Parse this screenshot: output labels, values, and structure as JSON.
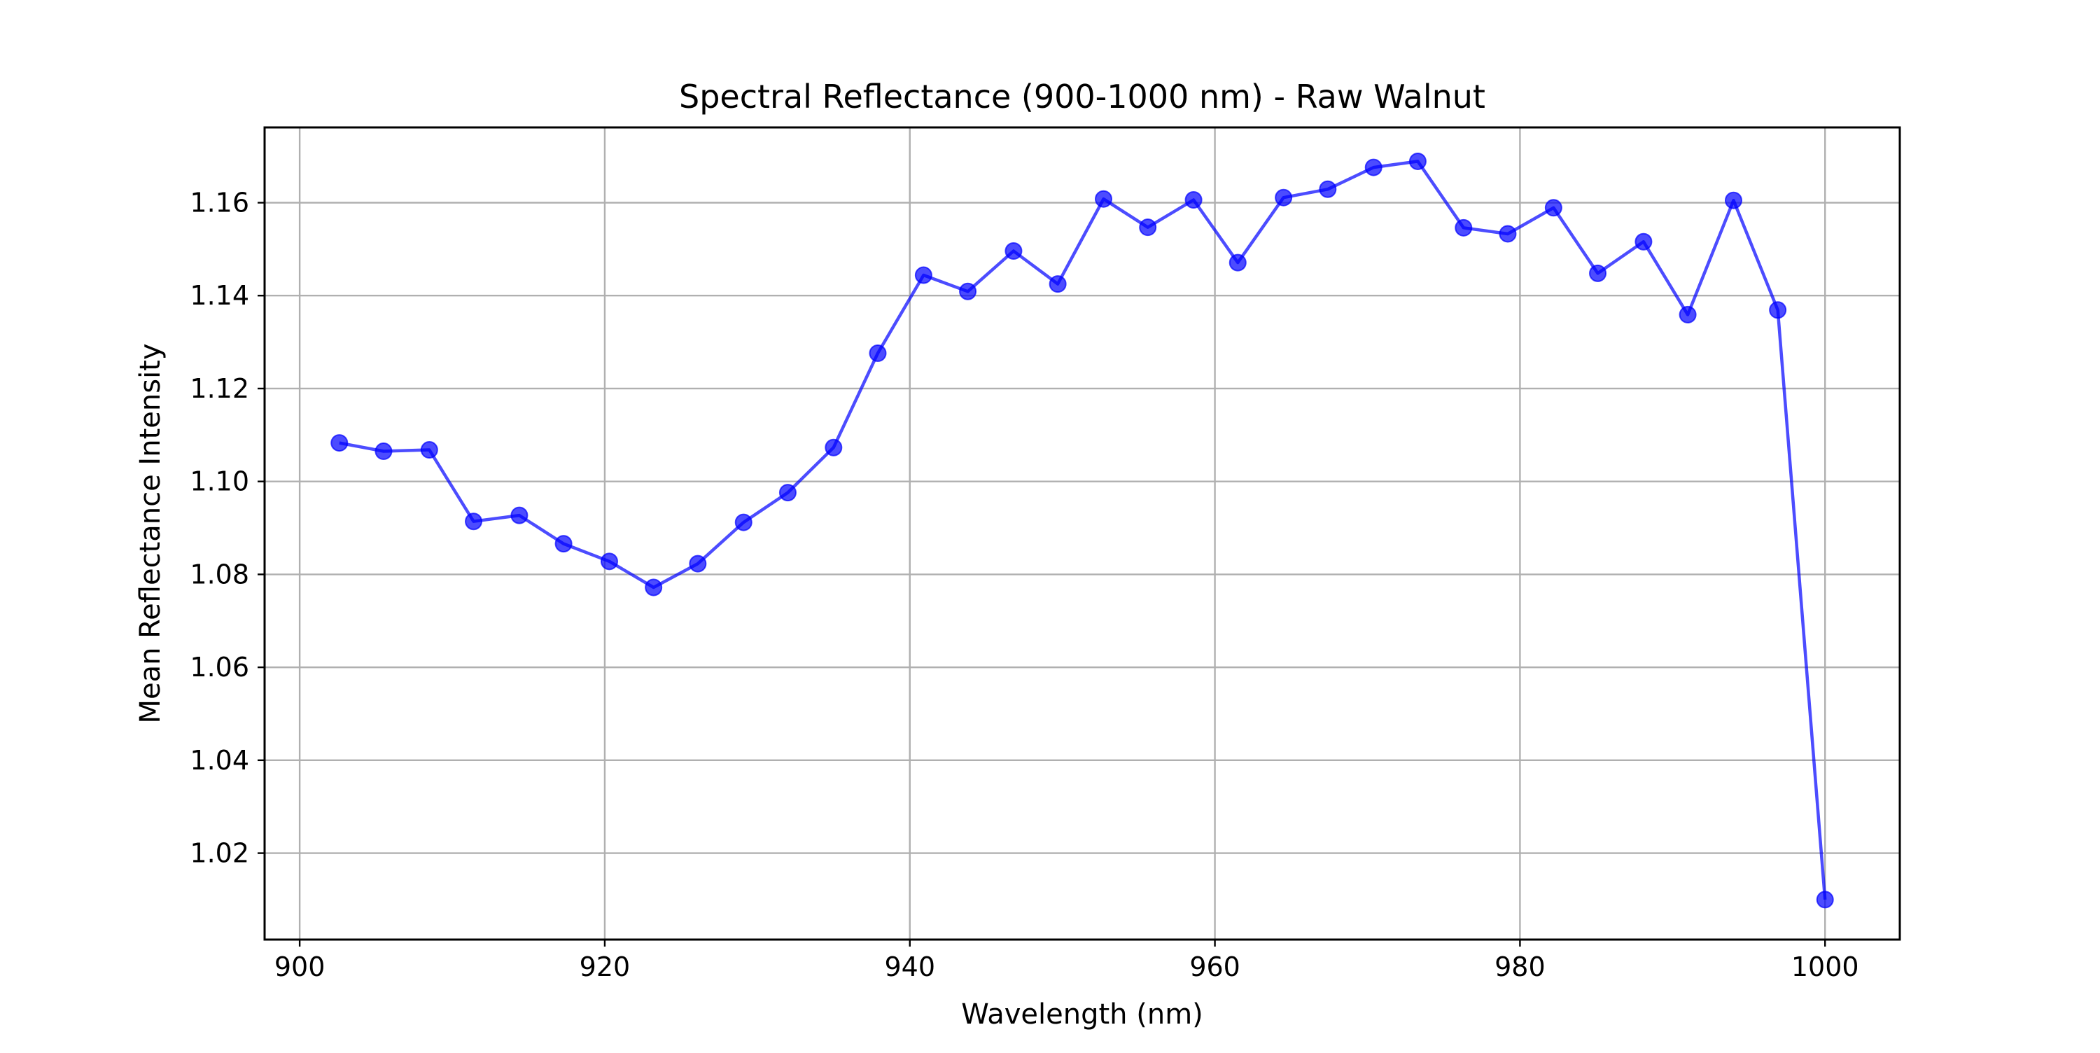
{
  "chart_data": {
    "type": "line",
    "title": "Spectral Reflectance (900-1000 nm) - Raw Walnut",
    "xlabel": "Wavelength (nm)",
    "ylabel": "Mean Reflectance Intensity",
    "xlim": [
      897.7,
      1004.9
    ],
    "ylim": [
      1.0014,
      1.1762
    ],
    "xticks": [
      900,
      920,
      940,
      960,
      980,
      1000
    ],
    "xtick_labels": [
      "900",
      "920",
      "940",
      "960",
      "980",
      "1000"
    ],
    "yticks": [
      1.02,
      1.04,
      1.06,
      1.08,
      1.1,
      1.12,
      1.14,
      1.16
    ],
    "ytick_labels": [
      "1.02",
      "1.04",
      "1.06",
      "1.08",
      "1.10",
      "1.12",
      "1.14",
      "1.16"
    ],
    "grid": true,
    "legend": "none",
    "series": [
      {
        "color": "#0000ff",
        "marker": "circle",
        "x": [
          902.6,
          905.5,
          908.5,
          911.4,
          914.4,
          917.3,
          920.3,
          923.2,
          926.1,
          929.1,
          932.0,
          935.0,
          937.9,
          940.9,
          943.8,
          946.8,
          949.7,
          952.7,
          955.6,
          958.6,
          961.5,
          964.5,
          967.4,
          970.4,
          973.3,
          976.3,
          979.2,
          982.2,
          985.1,
          988.1,
          991.0,
          994.0,
          996.9,
          1000.0
        ],
        "values": [
          1.1083,
          1.1065,
          1.1068,
          1.0914,
          1.0927,
          1.0866,
          1.0828,
          1.0772,
          1.0823,
          1.0912,
          1.0976,
          1.1073,
          1.1276,
          1.1444,
          1.1409,
          1.1496,
          1.1425,
          1.1608,
          1.1547,
          1.1606,
          1.1471,
          1.1611,
          1.1629,
          1.1676,
          1.1689,
          1.1546,
          1.1533,
          1.1589,
          1.1448,
          1.1516,
          1.1359,
          1.1605,
          1.1369,
          1.01
        ]
      }
    ]
  }
}
